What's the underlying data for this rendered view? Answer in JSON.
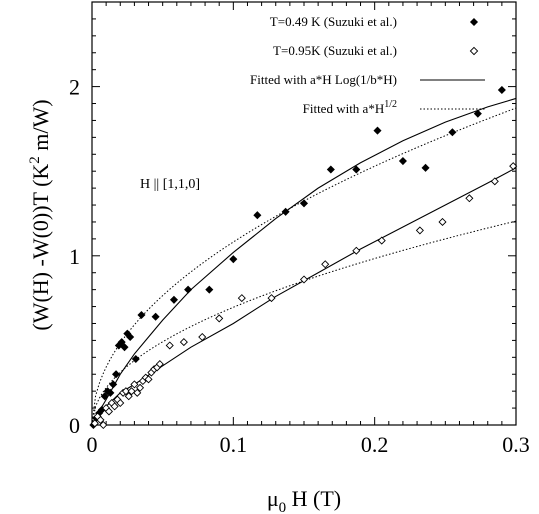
{
  "chart_data": {
    "type": "scatter",
    "xlim": [
      0,
      0.3
    ],
    "ylim": [
      0,
      2.5
    ],
    "x_ticks": [
      0,
      0.1,
      0.2,
      0.3
    ],
    "x_tick_labels": [
      "0",
      "0.1",
      "0.2",
      "0.3"
    ],
    "y_ticks": [
      0,
      1,
      2
    ],
    "y_tick_labels": [
      "0",
      "1",
      "2"
    ],
    "xlabel": {
      "main": "μ",
      "sub": "0",
      "rest": " H (T)"
    },
    "ylabel": {
      "main": "(W(H) -W(0))T  (K",
      "sup": "2",
      "rest": " m/W)"
    },
    "annotation": "H || [1,1,0]",
    "grid": false,
    "legend_position": "top-right",
    "series": [
      {
        "name": "T=0.49 K (Suzuki et al.)",
        "kind": "points",
        "marker": "filled-diamond",
        "points": [
          [
            0.001,
            0.0
          ],
          [
            0.003,
            0.04
          ],
          [
            0.005,
            0.07
          ],
          [
            0.007,
            0.09
          ],
          [
            0.009,
            0.17
          ],
          [
            0.011,
            0.2
          ],
          [
            0.013,
            0.19
          ],
          [
            0.015,
            0.24
          ],
          [
            0.017,
            0.3
          ],
          [
            0.019,
            0.47
          ],
          [
            0.021,
            0.49
          ],
          [
            0.023,
            0.46
          ],
          [
            0.025,
            0.54
          ],
          [
            0.027,
            0.52
          ],
          [
            0.031,
            0.39
          ],
          [
            0.035,
            0.65
          ],
          [
            0.045,
            0.64
          ],
          [
            0.058,
            0.74
          ],
          [
            0.068,
            0.8
          ],
          [
            0.083,
            0.8
          ],
          [
            0.1,
            0.98
          ],
          [
            0.117,
            1.24
          ],
          [
            0.137,
            1.26
          ],
          [
            0.15,
            1.31
          ],
          [
            0.169,
            1.51
          ],
          [
            0.187,
            1.51
          ],
          [
            0.202,
            1.74
          ],
          [
            0.22,
            1.56
          ],
          [
            0.236,
            1.52
          ],
          [
            0.255,
            1.73
          ],
          [
            0.273,
            1.84
          ],
          [
            0.29,
            1.98
          ]
        ]
      },
      {
        "name": "T=0.95K (Suzuki et al.)",
        "kind": "points",
        "marker": "open-diamond",
        "points": [
          [
            0.002,
            0.01
          ],
          [
            0.004,
            0.05
          ],
          [
            0.006,
            0.03
          ],
          [
            0.008,
            0.0
          ],
          [
            0.01,
            0.1
          ],
          [
            0.012,
            0.08
          ],
          [
            0.014,
            0.13
          ],
          [
            0.016,
            0.11
          ],
          [
            0.018,
            0.15
          ],
          [
            0.02,
            0.13
          ],
          [
            0.022,
            0.19
          ],
          [
            0.024,
            0.2
          ],
          [
            0.026,
            0.17
          ],
          [
            0.028,
            0.2
          ],
          [
            0.03,
            0.24
          ],
          [
            0.032,
            0.19
          ],
          [
            0.034,
            0.22
          ],
          [
            0.036,
            0.26
          ],
          [
            0.038,
            0.28
          ],
          [
            0.04,
            0.27
          ],
          [
            0.042,
            0.31
          ],
          [
            0.044,
            0.33
          ],
          [
            0.046,
            0.34
          ],
          [
            0.048,
            0.36
          ],
          [
            0.055,
            0.47
          ],
          [
            0.065,
            0.49
          ],
          [
            0.078,
            0.52
          ],
          [
            0.09,
            0.63
          ],
          [
            0.106,
            0.75
          ],
          [
            0.127,
            0.75
          ],
          [
            0.15,
            0.86
          ],
          [
            0.165,
            0.95
          ],
          [
            0.187,
            1.03
          ],
          [
            0.205,
            1.09
          ],
          [
            0.232,
            1.15
          ],
          [
            0.248,
            1.2
          ],
          [
            0.267,
            1.34
          ],
          [
            0.285,
            1.44
          ],
          [
            0.298,
            1.53
          ]
        ]
      },
      {
        "name": "Fitted with  a*H Log(1/b*H)",
        "kind": "line",
        "style": "solid",
        "fits": [
          {
            "points": [
              [
                0.0,
                0.0
              ],
              [
                0.005,
                0.08
              ],
              [
                0.01,
                0.15
              ],
              [
                0.02,
                0.3
              ],
              [
                0.03,
                0.42
              ],
              [
                0.04,
                0.52
              ],
              [
                0.05,
                0.62
              ],
              [
                0.07,
                0.8
              ],
              [
                0.1,
                1.02
              ],
              [
                0.13,
                1.22
              ],
              [
                0.16,
                1.4
              ],
              [
                0.19,
                1.55
              ],
              [
                0.22,
                1.68
              ],
              [
                0.25,
                1.79
              ],
              [
                0.28,
                1.88
              ],
              [
                0.3,
                1.93
              ]
            ]
          },
          {
            "points": [
              [
                0.0,
                0.0
              ],
              [
                0.01,
                0.11
              ],
              [
                0.02,
                0.19
              ],
              [
                0.03,
                0.24
              ],
              [
                0.05,
                0.35
              ],
              [
                0.07,
                0.46
              ],
              [
                0.1,
                0.6
              ],
              [
                0.13,
                0.76
              ],
              [
                0.16,
                0.9
              ],
              [
                0.19,
                1.04
              ],
              [
                0.22,
                1.17
              ],
              [
                0.25,
                1.3
              ],
              [
                0.28,
                1.43
              ],
              [
                0.3,
                1.52
              ]
            ]
          }
        ]
      },
      {
        "name": "Fitted with  a*H",
        "name_sup": "1/2",
        "kind": "line",
        "style": "dotted",
        "fits": [
          {
            "coef": 3.42
          },
          {
            "coef": 2.2
          }
        ]
      }
    ]
  },
  "colors": {
    "axis": "#000000",
    "marker": "#000000",
    "background": "#ffffff"
  }
}
